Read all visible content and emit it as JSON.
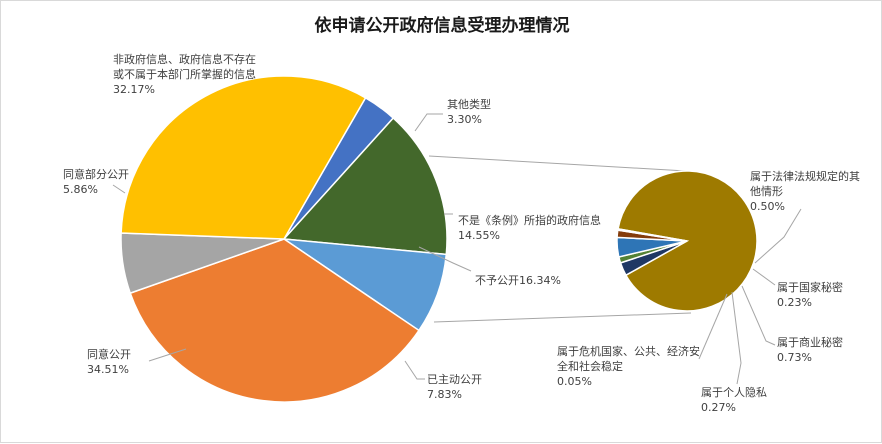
{
  "chart_data": {
    "type": "pie",
    "title": "依申请公开政府信息受理办理情况",
    "main": {
      "slices": [
        {
          "label": "其他类型",
          "value": 3.3,
          "value_text": "3.30%",
          "color": "#4472c4"
        },
        {
          "label": "不是《条例》所指的政府信息",
          "value": 14.55,
          "value_text": "14.55%",
          "color": "#43682b"
        },
        {
          "label": "已主动公开",
          "value": 7.83,
          "value_text": "7.83%",
          "color": "#5b9bd5"
        },
        {
          "label": "同意公开",
          "value": 34.51,
          "value_text": "34.51%",
          "color": "#ed7d31"
        },
        {
          "label": "同意部分公开",
          "value": 5.86,
          "value_text": "5.86%",
          "color": "#a5a5a5"
        },
        {
          "label": "非政府信息、政府信息不存在或不属于本部门所掌握的信息",
          "label_lines": [
            "非政府信息、政府信息不存在",
            "或不属于本部门所掌握的信息"
          ],
          "value": 32.17,
          "value_text": "32.17%",
          "color": "#ffc000"
        }
      ],
      "aggregate": {
        "label": "不予公开",
        "value": 16.34,
        "value_text": "16.34%",
        "inline_text": "不予公开16.34%"
      }
    },
    "secondary": {
      "slices": [
        {
          "label": "",
          "value": 14.55,
          "color": "#9e7a00"
        },
        {
          "label": "属于法律法规规定的其他情形",
          "label_lines": [
            "属于法律法规规定的其",
            "他情形"
          ],
          "value": 0.5,
          "value_text": "0.50%",
          "color": "#1f3864"
        },
        {
          "label": "属于国家秘密",
          "value": 0.23,
          "value_text": "0.23%",
          "color": "#548235"
        },
        {
          "label": "属于商业秘密",
          "value": 0.73,
          "value_text": "0.73%",
          "color": "#2e75b6"
        },
        {
          "label": "属于个人隐私",
          "value": 0.27,
          "value_text": "0.27%",
          "color": "#843c0c"
        },
        {
          "label": "属于危机国家、公共、经济安全和社会稳定",
          "label_lines": [
            "属于危机国家、公共、经济安",
            "全和社会稳定"
          ],
          "value": 0.05,
          "value_text": "0.05%",
          "color": "#6f6f6f"
        }
      ]
    },
    "legend": "none"
  }
}
